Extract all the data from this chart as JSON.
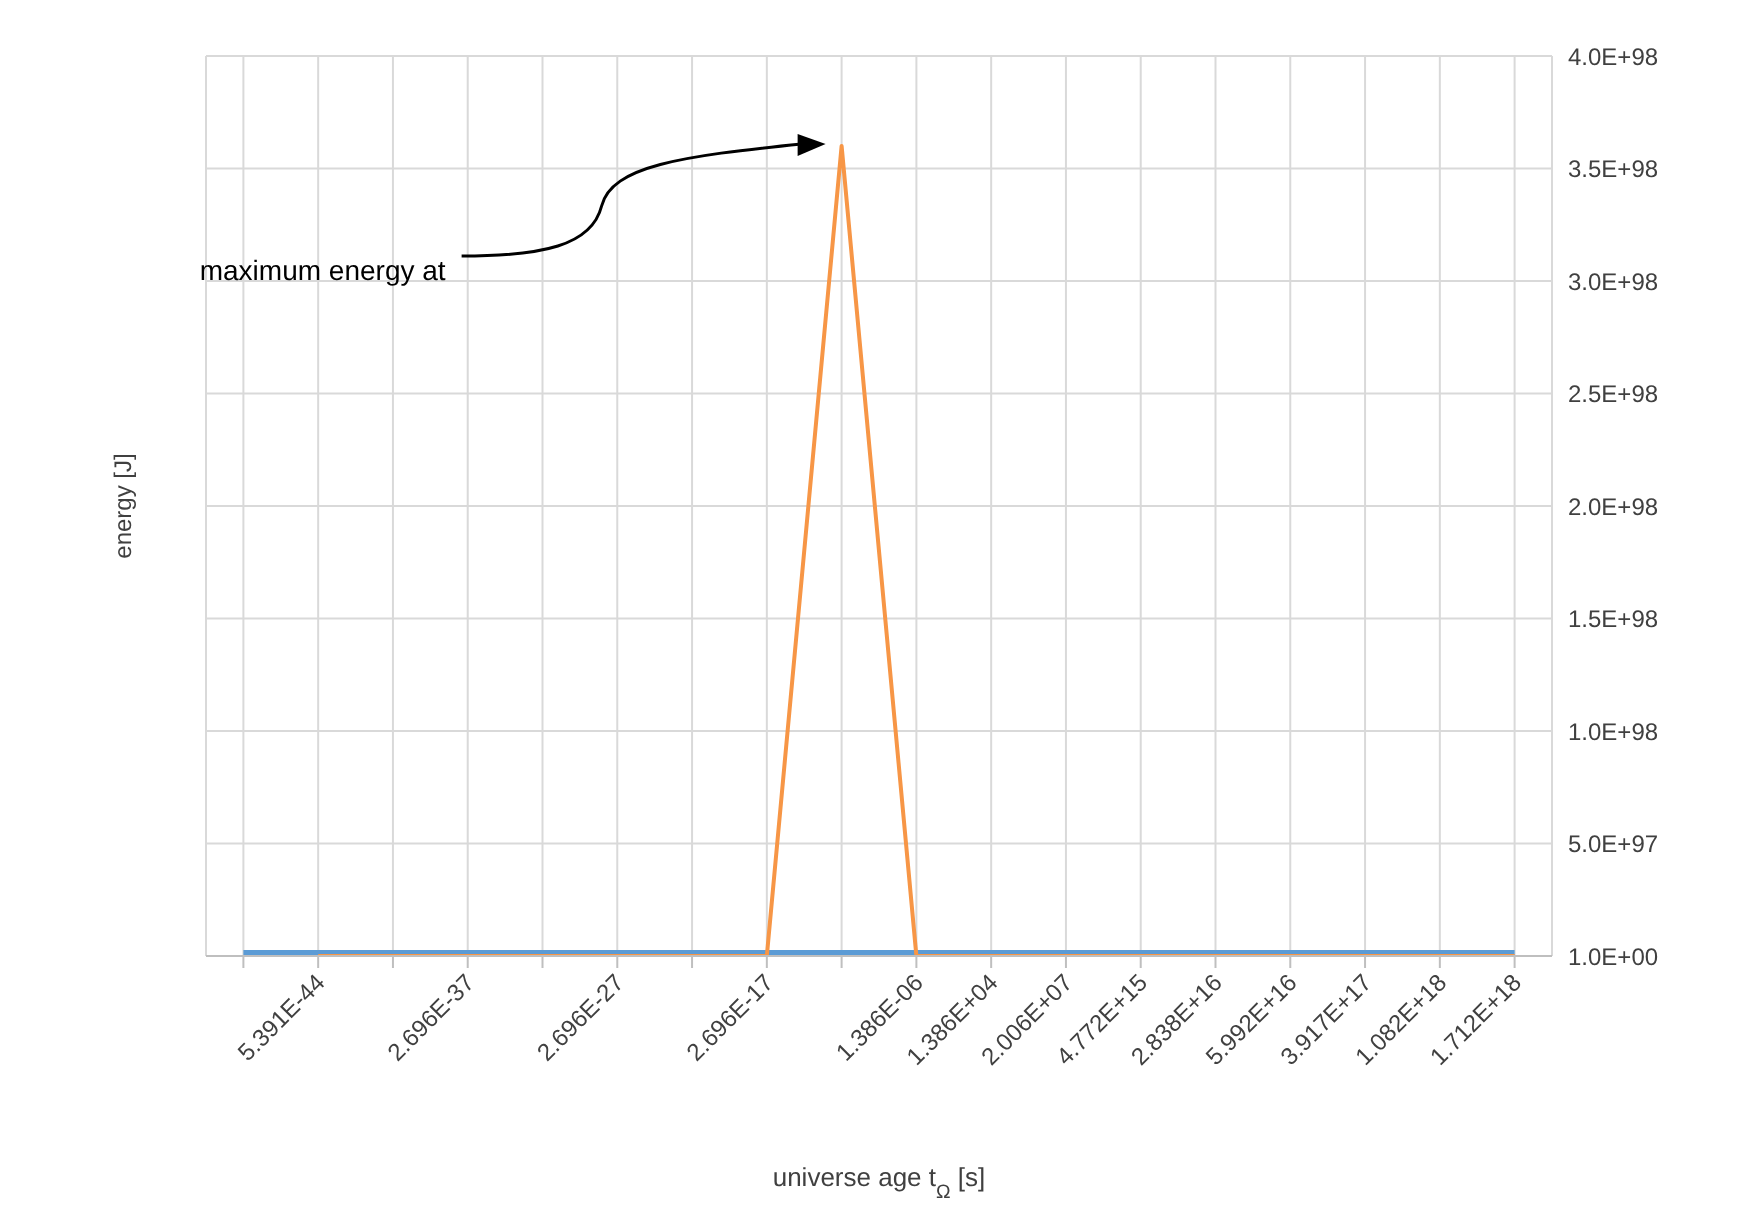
{
  "chart_data": {
    "type": "line",
    "xlabel": "universe age t$_{Ω}$ [s]",
    "ylabel": "energy [J]",
    "categories": [
      null,
      "5.391E-44",
      null,
      "2.696E-37",
      null,
      "2.696E-27",
      null,
      "2.696E-17",
      null,
      "1.386E-06",
      "1.386E+04",
      "2.006E+07",
      "4.772E+15",
      "2.838E+16",
      "5.992E+16",
      "3.917E+17",
      "1.082E+18",
      "1.712E+18"
    ],
    "ylim": [
      1,
      4e+98
    ],
    "yticks": [
      {
        "value": 1,
        "label": "1.0E+00"
      },
      {
        "value": 5e+97,
        "label": "5.0E+97"
      },
      {
        "value": 1e+98,
        "label": "1.0E+98"
      },
      {
        "value": 1.5e+98,
        "label": "1.5E+98"
      },
      {
        "value": 2e+98,
        "label": "2.0E+98"
      },
      {
        "value": 2.5e+98,
        "label": "2.5E+98"
      },
      {
        "value": 3e+98,
        "label": "3.0E+98"
      },
      {
        "value": 3.5e+98,
        "label": "3.5E+98"
      },
      {
        "value": 4e+98,
        "label": "4.0E+98"
      }
    ],
    "grid": true,
    "series": [
      {
        "color": "#5b9bd5",
        "values": [
          1,
          1,
          1,
          1,
          1,
          1,
          1,
          1,
          1,
          1,
          1,
          1,
          1,
          1,
          1,
          1,
          1,
          1
        ]
      },
      {
        "color": "#f79646",
        "values": [
          null,
          1,
          1,
          1,
          1,
          1,
          1,
          1,
          3.6e+98,
          1,
          1,
          1,
          1,
          1,
          1,
          1,
          1,
          1
        ]
      }
    ],
    "annotations": [
      "maximum energy at"
    ]
  }
}
